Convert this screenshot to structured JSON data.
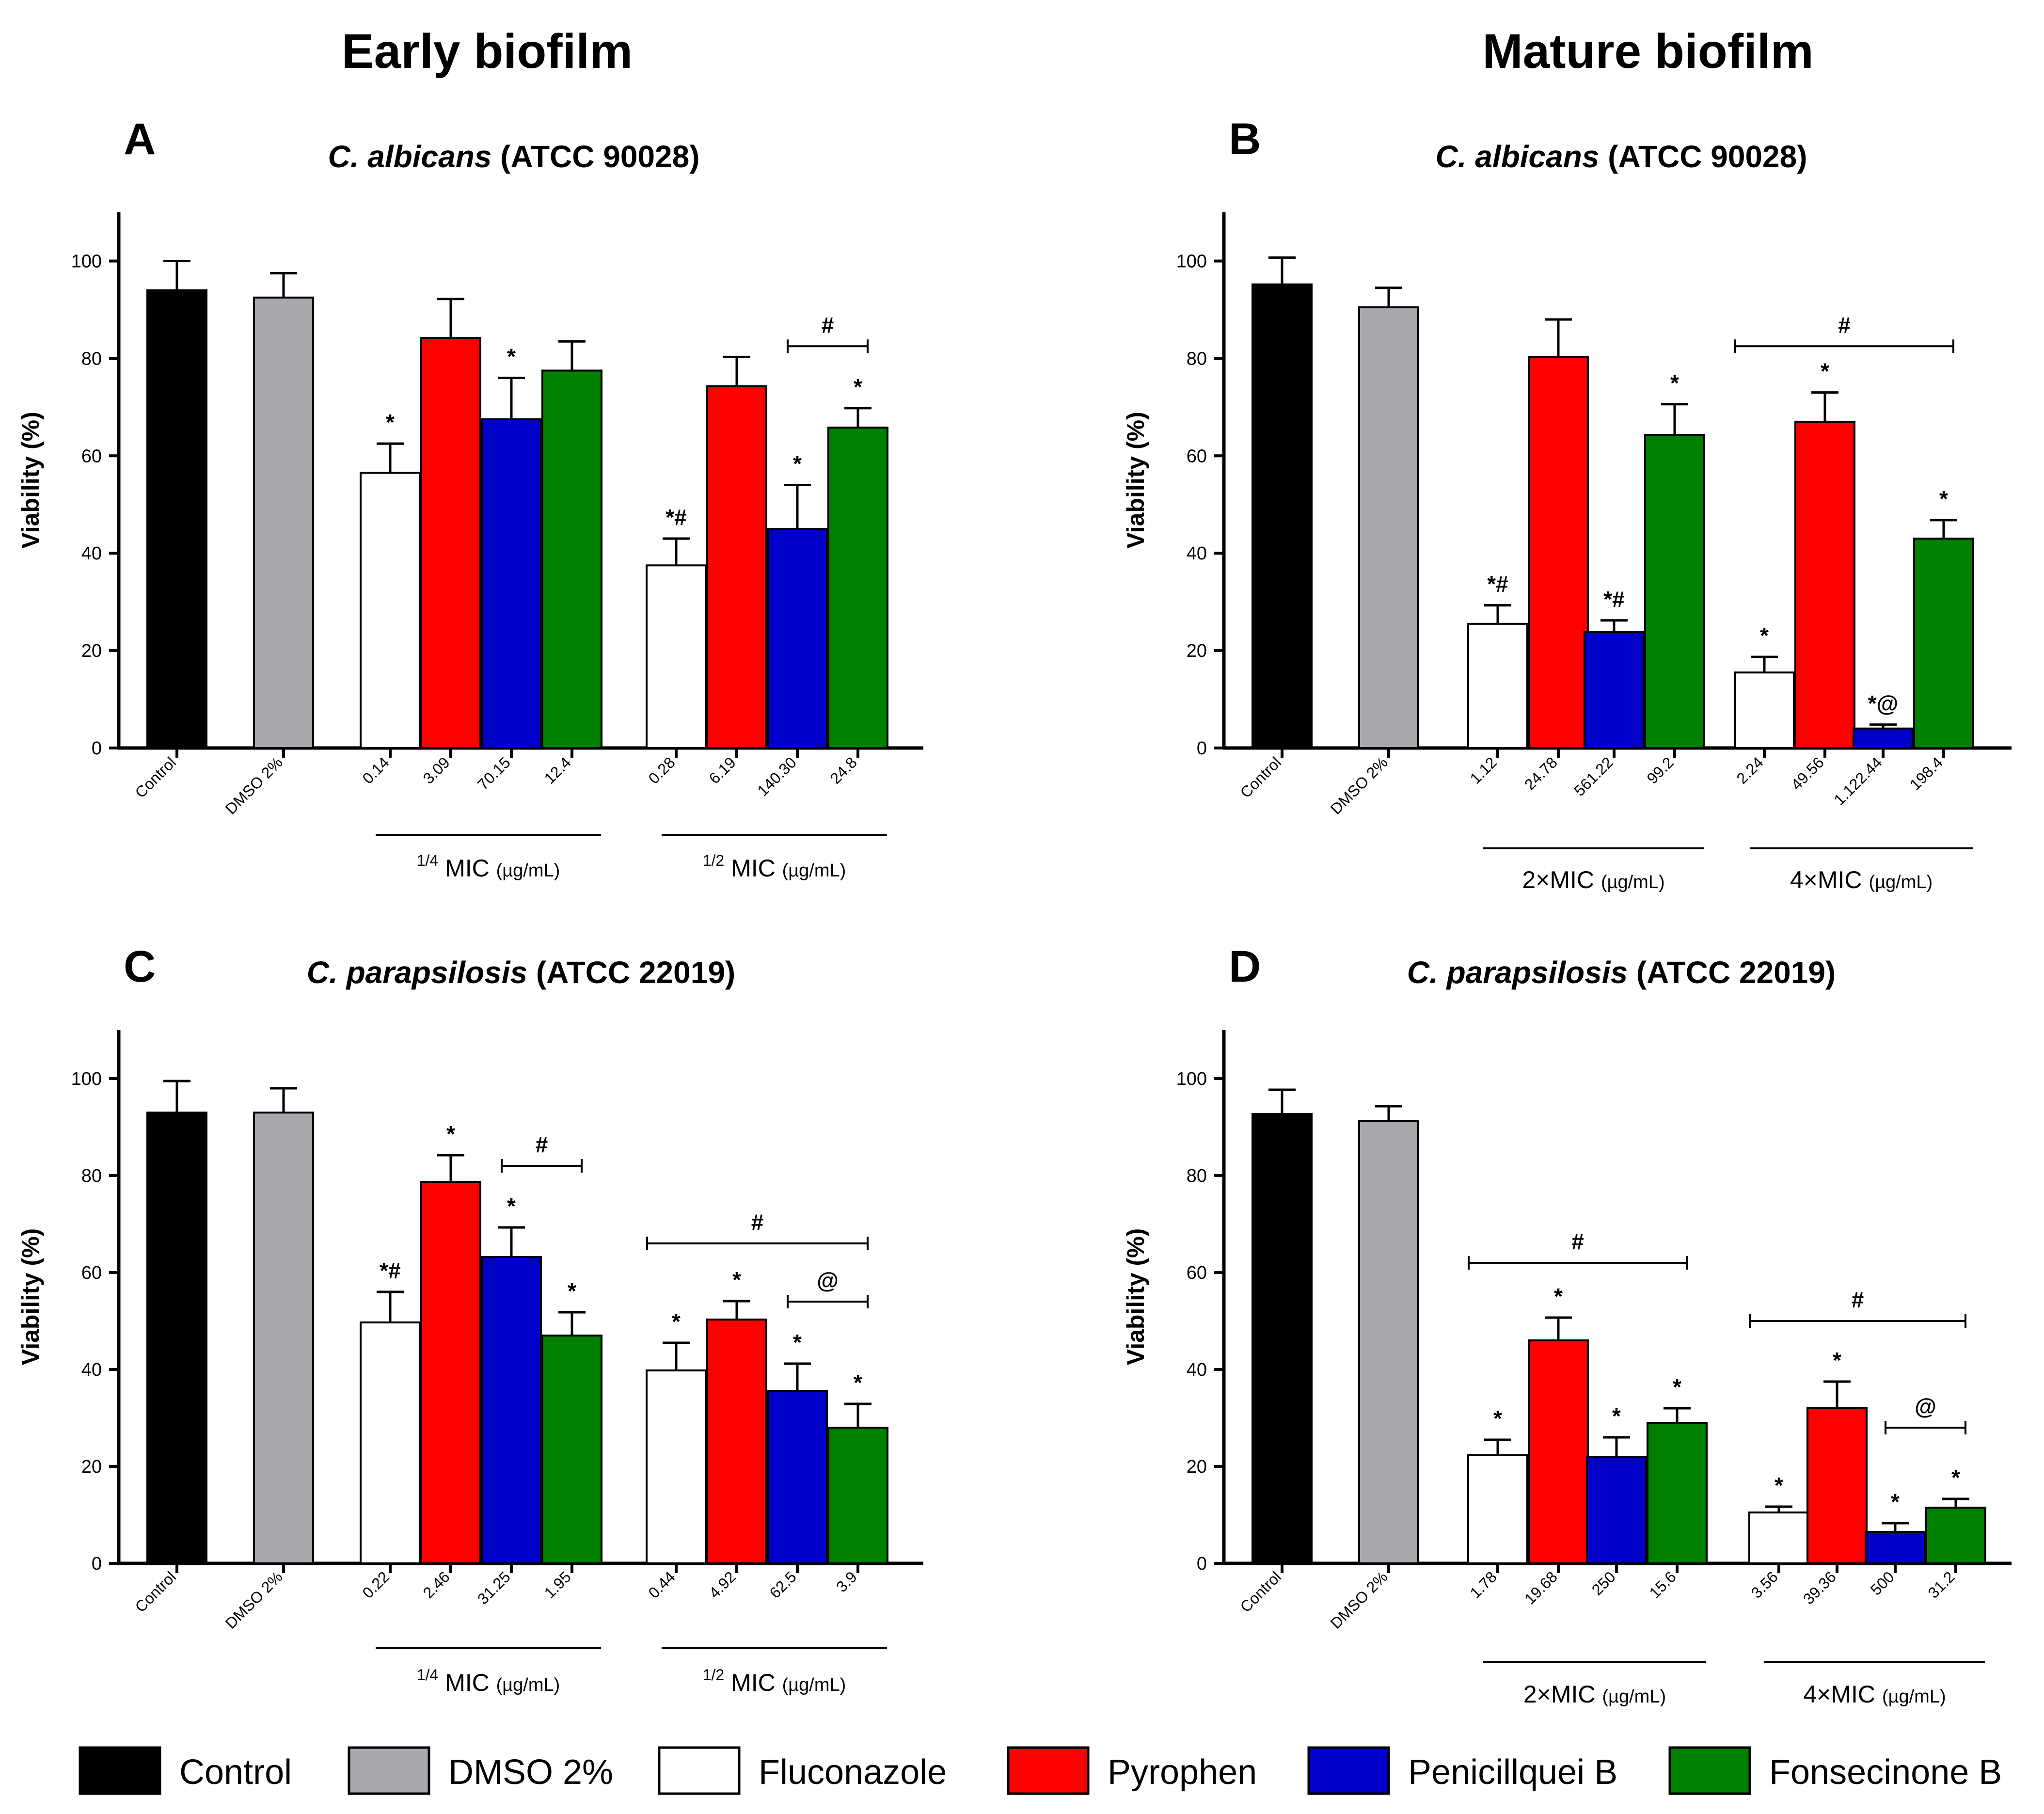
{
  "column_titles": [
    "Early biofilm",
    "Mature biofilm"
  ],
  "legend": [
    {
      "label": "Control",
      "color": "#000000"
    },
    {
      "label": "DMSO 2%",
      "color": "#a7a9ac"
    },
    {
      "label": "Fluconazole",
      "color": "#ffffff"
    },
    {
      "label": "Pyrophen",
      "color": "#ff0000"
    },
    {
      "label": "Penicillquei B",
      "color": "#0000c8"
    },
    {
      "label": "Fonsecinone B",
      "color": "#008000"
    }
  ],
  "chart_data": [
    {
      "type": "bar",
      "panel": "A",
      "title_italic": "C. albicans",
      "title_rest": " (ATCC 90028)",
      "ylabel": "Viability (%)",
      "ylim": [
        0,
        110
      ],
      "yticks": [
        "0",
        "20",
        "40",
        "60",
        "80",
        "100"
      ],
      "control_labels": [
        "Control",
        "DMSO 2%"
      ],
      "controls": [
        {
          "value": 94,
          "err": 6
        },
        {
          "value": 92.5,
          "err": 5
        }
      ],
      "groups": [
        {
          "sup": "1/4",
          "label": " MIC ",
          "unit": "(µg/mL)",
          "bars": [
            {
              "cat": "0.14",
              "value": 56.5,
              "err": 6,
              "ann": "*"
            },
            {
              "cat": "3.09",
              "value": 84.2,
              "err": 8,
              "ann": ""
            },
            {
              "cat": "70.15",
              "value": 67.5,
              "err": 8.5,
              "ann": "*"
            },
            {
              "cat": "12.4",
              "value": 77.5,
              "err": 6,
              "ann": ""
            }
          ]
        },
        {
          "sup": "1/2",
          "label": " MIC ",
          "unit": "(µg/mL)",
          "bars": [
            {
              "cat": "0.28",
              "value": 37.5,
              "err": 5.5,
              "ann": "*#"
            },
            {
              "cat": "6.19",
              "value": 74.3,
              "err": 6,
              "ann": ""
            },
            {
              "cat": "140.30",
              "value": 45,
              "err": 9,
              "ann": "*"
            },
            {
              "cat": "24.8",
              "value": 65.8,
              "err": 4,
              "ann": "*"
            }
          ]
        }
      ],
      "brackets": [
        {
          "symbol": "#",
          "from": [
            1,
            2
          ],
          "to": [
            1,
            3
          ],
          "y": 82.5
        }
      ]
    },
    {
      "type": "bar",
      "panel": "B",
      "title_italic": "C. albicans",
      "title_rest": " (ATCC 90028)",
      "ylabel": "Viability (%)",
      "ylim": [
        0,
        110
      ],
      "yticks": [
        "0",
        "20",
        "40",
        "60",
        "80",
        "100"
      ],
      "control_labels": [
        "Control",
        "DMSO 2%"
      ],
      "controls": [
        {
          "value": 95.2,
          "err": 5.5
        },
        {
          "value": 90.5,
          "err": 4
        }
      ],
      "groups": [
        {
          "sup": "",
          "label": "2×MIC ",
          "unit": "(µg/mL)",
          "bars": [
            {
              "cat": "1.12",
              "value": 25.5,
              "err": 3.8,
              "ann": "*#"
            },
            {
              "cat": "24.78",
              "value": 80.3,
              "err": 7.7,
              "ann": ""
            },
            {
              "cat": "561.22",
              "value": 23.8,
              "err": 2.4,
              "ann": "*#"
            },
            {
              "cat": "99.2",
              "value": 64.3,
              "err": 6.3,
              "ann": "*"
            }
          ]
        },
        {
          "sup": "",
          "label": "4×MIC ",
          "unit": "(µg/mL)",
          "bars": [
            {
              "cat": "2.24",
              "value": 15.5,
              "err": 3.2,
              "ann": "*"
            },
            {
              "cat": "49.56",
              "value": 67,
              "err": 6,
              "ann": "*"
            },
            {
              "cat": "1.122.44",
              "value": 4,
              "err": 0.8,
              "ann": "*@"
            },
            {
              "cat": "198.4",
              "value": 43,
              "err": 3.8,
              "ann": "*"
            }
          ]
        }
      ],
      "brackets": [
        {
          "symbol": "#",
          "from": [
            1,
            0
          ],
          "to": [
            1,
            3
          ],
          "y": 82.5
        }
      ]
    },
    {
      "type": "bar",
      "panel": "C",
      "title_italic": "C. parapsilosis",
      "title_rest": " (ATCC 22019)",
      "ylabel": "Viability (%)",
      "ylim": [
        0,
        110
      ],
      "yticks": [
        "0",
        "20",
        "40",
        "60",
        "80",
        "100"
      ],
      "control_labels": [
        "Control",
        "DMSO 2%"
      ],
      "controls": [
        {
          "value": 93,
          "err": 6.5
        },
        {
          "value": 93,
          "err": 5
        }
      ],
      "groups": [
        {
          "sup": "1/4",
          "label": " MIC ",
          "unit": "(µg/mL)",
          "bars": [
            {
              "cat": "0.22",
              "value": 49.7,
              "err": 6.3,
              "ann": "*#"
            },
            {
              "cat": "2.46",
              "value": 78.7,
              "err": 5.5,
              "ann": "*"
            },
            {
              "cat": "31.25",
              "value": 63.2,
              "err": 6.1,
              "ann": "*"
            },
            {
              "cat": "1.95",
              "value": 47,
              "err": 4.8,
              "ann": "*"
            }
          ]
        },
        {
          "sup": "1/2",
          "label": " MIC ",
          "unit": "(µg/mL)",
          "bars": [
            {
              "cat": "0.44",
              "value": 39.8,
              "err": 5.7,
              "ann": "*"
            },
            {
              "cat": "4.92",
              "value": 50.3,
              "err": 3.8,
              "ann": "*"
            },
            {
              "cat": "62.5",
              "value": 35.6,
              "err": 5.6,
              "ann": "*"
            },
            {
              "cat": "3.9",
              "value": 28,
              "err": 4.9,
              "ann": "*"
            }
          ]
        }
      ],
      "brackets": [
        {
          "symbol": "#",
          "from": [
            0,
            2
          ],
          "to": [
            0,
            3
          ],
          "y": 82
        },
        {
          "symbol": "#",
          "from": [
            1,
            0
          ],
          "to": [
            1,
            3
          ],
          "y": 66
        },
        {
          "symbol": "@",
          "from": [
            1,
            2
          ],
          "to": [
            1,
            3
          ],
          "y": 54
        }
      ]
    },
    {
      "type": "bar",
      "panel": "D",
      "title_italic": "C. parapsilosis",
      "title_rest": " (ATCC 22019)",
      "ylabel": "Viability (%)",
      "ylim": [
        0,
        110
      ],
      "yticks": [
        "0",
        "20",
        "40",
        "60",
        "80",
        "100"
      ],
      "control_labels": [
        "Control",
        "DMSO 2%"
      ],
      "controls": [
        {
          "value": 92.7,
          "err": 5
        },
        {
          "value": 91.3,
          "err": 3
        }
      ],
      "groups": [
        {
          "sup": "",
          "label": "2×MIC ",
          "unit": "(µg/mL)",
          "bars": [
            {
              "cat": "1.78",
              "value": 22.3,
              "err": 3.2,
              "ann": "*"
            },
            {
              "cat": "19.68",
              "value": 46,
              "err": 4.7,
              "ann": "*"
            },
            {
              "cat": "250",
              "value": 22,
              "err": 4,
              "ann": "*"
            },
            {
              "cat": "15.6",
              "value": 29,
              "err": 3,
              "ann": "*"
            }
          ]
        },
        {
          "sup": "",
          "label": "4×MIC ",
          "unit": "(µg/mL)",
          "bars": [
            {
              "cat": "3.56",
              "value": 10.5,
              "err": 1.2,
              "ann": "*"
            },
            {
              "cat": "39.36",
              "value": 32,
              "err": 5.5,
              "ann": "*"
            },
            {
              "cat": "500",
              "value": 6.5,
              "err": 1.8,
              "ann": "*"
            },
            {
              "cat": "31.2",
              "value": 11.5,
              "err": 1.8,
              "ann": "*"
            }
          ]
        }
      ],
      "brackets": [
        {
          "symbol": "#",
          "from": [
            0,
            0
          ],
          "to": [
            0,
            3
          ],
          "y": 62
        },
        {
          "symbol": "#",
          "from": [
            1,
            0
          ],
          "to": [
            1,
            3
          ],
          "y": 50
        },
        {
          "symbol": "@",
          "from": [
            1,
            2
          ],
          "to": [
            1,
            3
          ],
          "y": 28
        }
      ]
    }
  ]
}
